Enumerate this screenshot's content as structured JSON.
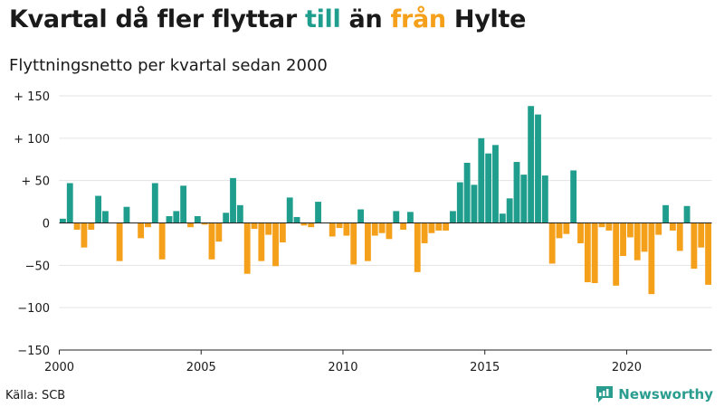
{
  "title": {
    "part1": "Kvartal då fler flyttar ",
    "till": "till",
    "mid": " än ",
    "fran": "från",
    "end": " Hylte"
  },
  "subtitle": "Flyttningsnetto per kvartal sedan 2000",
  "source": "Källa: SCB",
  "brand": {
    "name": "Newsworthy",
    "icon": "newsworthy-logo-icon"
  },
  "colors": {
    "positive": "#1f9e8e",
    "negative": "#f5a01a",
    "text": "#1a1a1a"
  },
  "chart_data": {
    "type": "bar",
    "x_start_year": 2000,
    "periods_per_year": 4,
    "ylim": [
      -150,
      150
    ],
    "yticks": [
      150,
      100,
      50,
      0,
      -50,
      -100,
      -150
    ],
    "ytick_labels": [
      "+ 150",
      "+ 100",
      "+  50",
      "0",
      "−50",
      "−100",
      "−150"
    ],
    "xticks": [
      2000,
      2005,
      2010,
      2015,
      2020
    ],
    "xtick_labels": [
      "2000",
      "2005",
      "2010",
      "2015",
      "2020"
    ],
    "values": [
      5,
      47,
      -8,
      -29,
      -8,
      32,
      14,
      0,
      -45,
      19,
      0,
      -18,
      -5,
      47,
      -43,
      8,
      14,
      44,
      -5,
      8,
      -2,
      -43,
      -22,
      12,
      53,
      21,
      -60,
      -7,
      -45,
      -14,
      -51,
      -23,
      30,
      7,
      -3,
      -5,
      25,
      0,
      -16,
      -6,
      -15,
      -49,
      16,
      -45,
      -15,
      -12,
      -19,
      14,
      -8,
      13,
      -58,
      -24,
      -12,
      -9,
      -9,
      14,
      48,
      71,
      45,
      100,
      82,
      92,
      11,
      29,
      72,
      57,
      138,
      128,
      56,
      -48,
      -18,
      -13,
      62,
      -24,
      -70,
      -71,
      -5,
      -9,
      -74,
      -39,
      -17,
      -44,
      -34,
      -84,
      -14,
      21,
      -9,
      -33,
      20,
      -54,
      -29,
      -73
    ],
    "grid": "horizontal",
    "legend": "none"
  }
}
